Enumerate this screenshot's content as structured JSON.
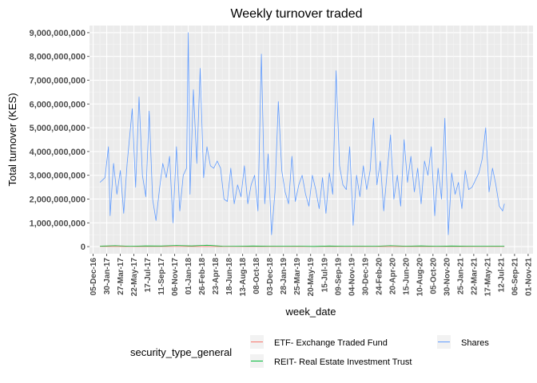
{
  "chart_data": {
    "type": "line",
    "title": "Weekly turnover traded",
    "xlabel": "week_date",
    "ylabel": "Total turnover (KES)",
    "ylim": [
      -300000000,
      9300000000
    ],
    "yticks": [
      0,
      1000000000,
      2000000000,
      3000000000,
      4000000000,
      5000000000,
      6000000000,
      7000000000,
      8000000000,
      9000000000
    ],
    "ytick_labels": [
      "0",
      "1,000,000,000",
      "2,000,000,000",
      "3,000,000,000",
      "4,000,000,000",
      "5,000,000,000",
      "6,000,000,000",
      "7,000,000,000",
      "8,000,000,000",
      "9,000,000,000"
    ],
    "xlim": [
      "2016-11-20",
      "2021-11-21"
    ],
    "xticks": [
      "2016-12-05",
      "2017-01-30",
      "2017-03-27",
      "2017-05-22",
      "2017-07-17",
      "2017-09-11",
      "2017-11-06",
      "2018-01-01",
      "2018-02-26",
      "2018-04-23",
      "2018-06-18",
      "2018-08-13",
      "2018-10-08",
      "2018-12-03",
      "2019-01-28",
      "2019-03-25",
      "2019-05-20",
      "2019-07-15",
      "2019-09-09",
      "2019-11-04",
      "2019-12-30",
      "2020-02-24",
      "2020-04-20",
      "2020-06-15",
      "2020-08-10",
      "2020-10-05",
      "2020-11-30",
      "2021-01-25",
      "2021-03-22",
      "2021-05-17",
      "2021-07-12",
      "2021-09-06",
      "2021-11-01"
    ],
    "xtick_labels": [
      "05-Dec-16",
      "30-Jan-17",
      "27-Mar-17",
      "22-May-17",
      "17-Jul-17",
      "11-Sep-17",
      "06-Nov-17",
      "01-Jan-18",
      "26-Feb-18",
      "23-Apr-18",
      "18-Jun-18",
      "13-Aug-18",
      "08-Oct-18",
      "03-Dec-18",
      "28-Jan-19",
      "25-Mar-19",
      "20-May-19",
      "15-Jul-19",
      "09-Sep-19",
      "04-Nov-19",
      "30-Dec-19",
      "24-Feb-20",
      "20-Apr-20",
      "15-Jun-20",
      "10-Aug-20",
      "05-Oct-20",
      "30-Nov-20",
      "25-Jan-21",
      "22-Mar-21",
      "17-May-21",
      "12-Jul-21",
      "06-Sep-21",
      "01-Nov-21"
    ],
    "grid": true,
    "legend_position": "bottom",
    "legend_title": "security_type_general",
    "series": [
      {
        "name": "ETF- Exchange Traded Fund",
        "color": "#f8766d",
        "x": [
          "2017-01-02",
          "2017-06-05",
          "2017-12-04",
          "2018-06-04",
          "2018-12-03",
          "2019-06-03",
          "2019-12-02",
          "2020-06-01",
          "2020-11-30",
          "2021-05-31",
          "2021-07-26"
        ],
        "values": [
          5000000,
          3000000,
          4000000,
          2000000,
          3000000,
          2000000,
          3000000,
          2000000,
          2000000,
          2000000,
          2000000
        ]
      },
      {
        "name": "REIT- Real Estate Investment Trust",
        "color": "#00ba38",
        "x": [
          "2017-01-02",
          "2017-03-06",
          "2017-05-08",
          "2017-07-10",
          "2017-09-11",
          "2017-11-13",
          "2018-01-15",
          "2018-03-19",
          "2018-05-21",
          "2018-07-23",
          "2018-09-24",
          "2018-11-26",
          "2019-01-28",
          "2019-04-01",
          "2019-06-03",
          "2019-08-05",
          "2019-10-07",
          "2019-12-09",
          "2020-02-10",
          "2020-04-13",
          "2020-06-15",
          "2020-08-17",
          "2020-10-19",
          "2020-12-21",
          "2021-02-22",
          "2021-04-26",
          "2021-06-28",
          "2021-07-26"
        ],
        "values": [
          20000000,
          40000000,
          15000000,
          30000000,
          25000000,
          50000000,
          30000000,
          60000000,
          20000000,
          15000000,
          25000000,
          20000000,
          15000000,
          20000000,
          10000000,
          25000000,
          15000000,
          20000000,
          15000000,
          40000000,
          20000000,
          30000000,
          15000000,
          25000000,
          20000000,
          15000000,
          20000000,
          15000000
        ]
      },
      {
        "name": "Shares",
        "color": "#619cff",
        "x": [
          "2017-01-02",
          "2017-01-23",
          "2017-02-06",
          "2017-02-13",
          "2017-02-27",
          "2017-03-13",
          "2017-03-27",
          "2017-04-10",
          "2017-04-24",
          "2017-05-15",
          "2017-05-29",
          "2017-06-12",
          "2017-06-26",
          "2017-07-10",
          "2017-07-24",
          "2017-08-07",
          "2017-08-21",
          "2017-09-04",
          "2017-09-18",
          "2017-10-02",
          "2017-10-16",
          "2017-10-30",
          "2017-11-13",
          "2017-11-27",
          "2017-12-11",
          "2017-12-25",
          "2018-01-01",
          "2018-01-08",
          "2018-01-22",
          "2018-02-05",
          "2018-02-19",
          "2018-03-05",
          "2018-03-19",
          "2018-04-02",
          "2018-04-16",
          "2018-04-30",
          "2018-05-14",
          "2018-05-28",
          "2018-06-11",
          "2018-06-25",
          "2018-07-09",
          "2018-07-23",
          "2018-08-06",
          "2018-08-20",
          "2018-09-03",
          "2018-09-17",
          "2018-10-01",
          "2018-10-15",
          "2018-10-29",
          "2018-11-12",
          "2018-11-26",
          "2018-12-10",
          "2018-12-24",
          "2019-01-07",
          "2019-01-21",
          "2019-02-04",
          "2019-02-18",
          "2019-03-04",
          "2019-03-18",
          "2019-04-01",
          "2019-04-15",
          "2019-04-29",
          "2019-05-13",
          "2019-05-27",
          "2019-06-10",
          "2019-06-24",
          "2019-07-08",
          "2019-07-22",
          "2019-08-05",
          "2019-08-19",
          "2019-09-02",
          "2019-09-16",
          "2019-09-30",
          "2019-10-14",
          "2019-10-28",
          "2019-11-11",
          "2019-11-25",
          "2019-12-09",
          "2019-12-23",
          "2020-01-06",
          "2020-01-20",
          "2020-02-03",
          "2020-02-17",
          "2020-03-02",
          "2020-03-16",
          "2020-03-30",
          "2020-04-13",
          "2020-04-27",
          "2020-05-11",
          "2020-05-25",
          "2020-06-08",
          "2020-06-22",
          "2020-07-06",
          "2020-07-20",
          "2020-08-03",
          "2020-08-17",
          "2020-08-31",
          "2020-09-14",
          "2020-09-28",
          "2020-10-12",
          "2020-10-26",
          "2020-11-09",
          "2020-11-23",
          "2020-12-07",
          "2020-12-21",
          "2021-01-04",
          "2021-01-18",
          "2021-02-01",
          "2021-02-15",
          "2021-03-01",
          "2021-03-15",
          "2021-03-29",
          "2021-04-12",
          "2021-04-26",
          "2021-05-10",
          "2021-05-24",
          "2021-06-07",
          "2021-06-21",
          "2021-07-05",
          "2021-07-19",
          "2021-07-26"
        ],
        "values": [
          2700000000,
          2900000000,
          4200000000,
          1300000000,
          3500000000,
          2200000000,
          3200000000,
          1400000000,
          3500000000,
          5800000000,
          2500000000,
          6300000000,
          3000000000,
          2100000000,
          5700000000,
          2000000000,
          1100000000,
          2400000000,
          3500000000,
          2900000000,
          3800000000,
          1000000000,
          4200000000,
          1500000000,
          3000000000,
          3300000000,
          9000000000,
          2200000000,
          6600000000,
          3500000000,
          7500000000,
          2900000000,
          4200000000,
          3400000000,
          3300000000,
          3600000000,
          3300000000,
          2000000000,
          1900000000,
          3300000000,
          1800000000,
          2600000000,
          2100000000,
          3400000000,
          1800000000,
          2600000000,
          3000000000,
          1500000000,
          8100000000,
          1800000000,
          3900000000,
          500000000,
          2300000000,
          6100000000,
          3200000000,
          2300000000,
          1800000000,
          3800000000,
          1900000000,
          2600000000,
          3000000000,
          2200000000,
          1700000000,
          3000000000,
          2400000000,
          1600000000,
          2900000000,
          1400000000,
          3100000000,
          2200000000,
          7400000000,
          3400000000,
          2600000000,
          2400000000,
          4200000000,
          900000000,
          3000000000,
          2100000000,
          3400000000,
          2400000000,
          3200000000,
          5400000000,
          2600000000,
          3600000000,
          1500000000,
          3100000000,
          4700000000,
          2000000000,
          3000000000,
          1700000000,
          4500000000,
          2700000000,
          3800000000,
          2300000000,
          3300000000,
          1800000000,
          3600000000,
          3000000000,
          4200000000,
          1300000000,
          3300000000,
          2000000000,
          5400000000,
          500000000,
          3100000000,
          2200000000,
          2700000000,
          1600000000,
          3200000000,
          2400000000,
          2500000000,
          2800000000,
          3100000000,
          3700000000,
          5000000000,
          2300000000,
          3300000000,
          2600000000,
          1700000000,
          1500000000,
          1800000000
        ]
      }
    ]
  }
}
